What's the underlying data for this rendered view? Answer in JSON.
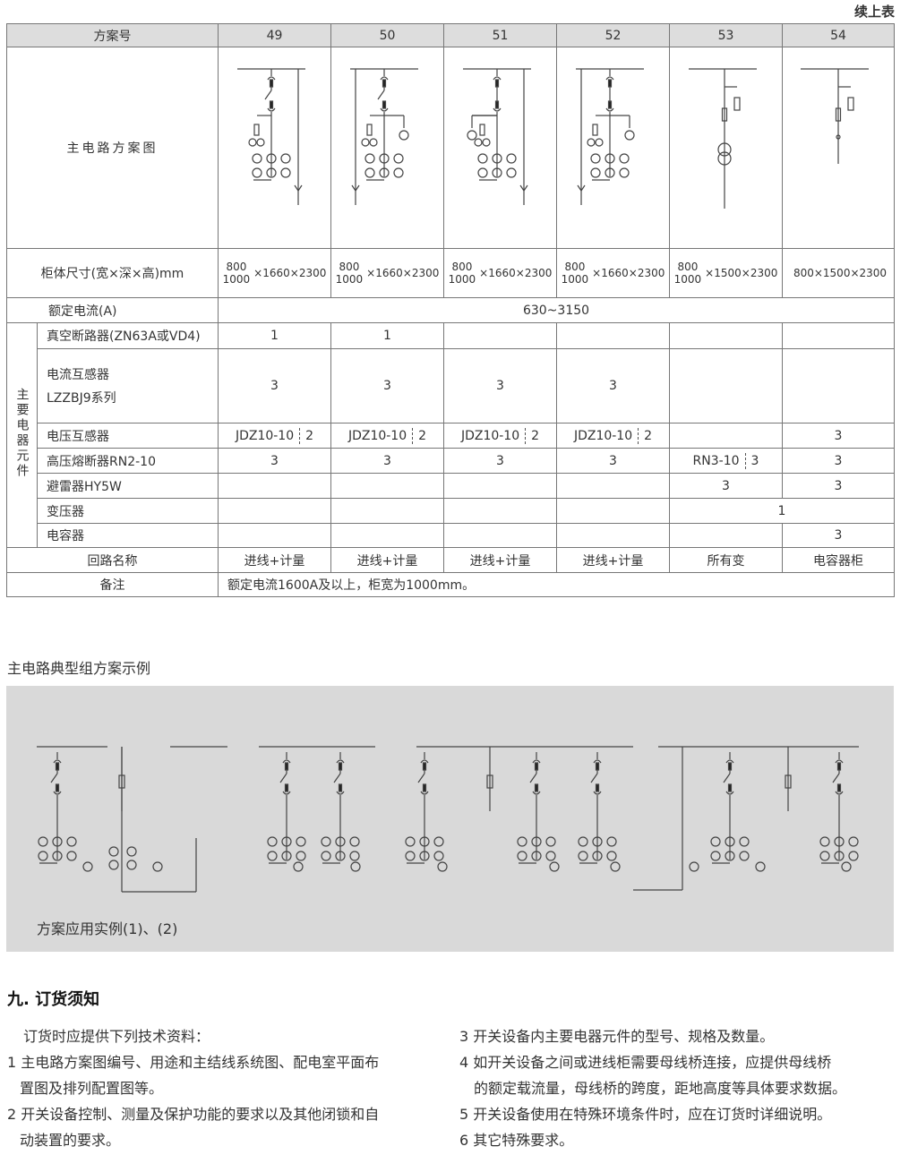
{
  "continued_label": "续上表",
  "table": {
    "header_label": "方案号",
    "schemes": [
      "49",
      "50",
      "51",
      "52",
      "53",
      "54"
    ],
    "diagram_label": "主电路方案图",
    "size_label": "柜体尺寸(宽×深×高)mm",
    "sizes": [
      {
        "w1": "800",
        "w2": "1000",
        "rest": "×1660×2300"
      },
      {
        "w1": "800",
        "w2": "1000",
        "rest": "×1660×2300"
      },
      {
        "w1": "800",
        "w2": "1000",
        "rest": "×1660×2300"
      },
      {
        "w1": "800",
        "w2": "1000",
        "rest": "×1660×2300"
      },
      {
        "w1": "800",
        "w2": "1000",
        "rest": "×1500×2300"
      },
      {
        "w1": "",
        "w2": "",
        "rest": "800×1500×2300"
      }
    ],
    "current_label": "额定电流(A)",
    "current_value": "630~3150",
    "group_label": "主要电器元件",
    "components": [
      {
        "label": "真空断路器(ZN63A或VD4)",
        "values": [
          "1",
          "1",
          "",
          "",
          "",
          ""
        ]
      },
      {
        "label": "电流互感器",
        "label2": "LZZBJ9系列",
        "values": [
          "3",
          "3",
          "3",
          "3",
          "",
          ""
        ]
      },
      {
        "label": "电压互感器",
        "values": [
          [
            "JDZ10-10",
            "2"
          ],
          [
            "JDZ10-10",
            "2"
          ],
          [
            "JDZ10-10",
            "2"
          ],
          [
            "JDZ10-10",
            "2"
          ],
          "",
          "3"
        ]
      },
      {
        "label": "高压熔断器RN2-10",
        "values": [
          "3",
          "3",
          "3",
          "3",
          [
            "RN3-10",
            "3"
          ],
          "3"
        ]
      },
      {
        "label": "避雷器HY5W",
        "values": [
          "",
          "",
          "",
          "",
          "3",
          "3"
        ]
      },
      {
        "label": "变压器",
        "values": [
          "",
          "",
          "",
          "",
          "1",
          ""
        ]
      },
      {
        "label": "电容器",
        "values": [
          "",
          "",
          "",
          "",
          "",
          "3"
        ]
      }
    ],
    "circuit_label": "回路名称",
    "circuits": [
      "进线+计量",
      "进线+计量",
      "进线+计量",
      "进线+计量",
      "所有变",
      "电容器柜"
    ],
    "note_label": "备注",
    "note_value": "额定电流1600A及以上，柜宽为1000mm。"
  },
  "example": {
    "title": "主电路典型组方案示例",
    "caption": "方案应用实例(1)、(2)"
  },
  "order": {
    "heading": "九. 订货须知",
    "intro": "订货时应提供下列技术资料：",
    "left": [
      "1 主电路方案图编号、用途和主结线系统图、配电室平面布",
      "置图及排列配置图等。",
      "2 开关设备控制、测量及保护功能的要求以及其他闭锁和自",
      "动装置的要求。"
    ],
    "right": [
      "3 开关设备内主要电器元件的型号、规格及数量。",
      "4 如开关设备之间或进线柜需要母线桥连接，应提供母线桥",
      "的额定载流量，母线桥的跨度，距地高度等具体要求数据。",
      "5 开关设备使用在特殊环境条件时，应在订货时详细说明。",
      "6 其它特殊要求。"
    ]
  }
}
